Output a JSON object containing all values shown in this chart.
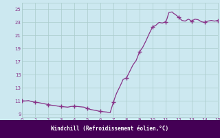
{
  "xlabel": "Windchill (Refroidissement éolien,°C)",
  "bg_color": "#cce8f0",
  "grid_color": "#aacccc",
  "line_color": "#883388",
  "marker_color": "#883388",
  "xlabel_bg": "#440055",
  "xlabel_fg": "#ffffff",
  "xlim": [
    0,
    15
  ],
  "ylim": [
    8.5,
    26
  ],
  "yticks": [
    9,
    11,
    13,
    15,
    17,
    19,
    21,
    23,
    25
  ],
  "xticks": [
    0,
    1,
    2,
    3,
    4,
    5,
    6,
    7,
    8,
    9,
    10,
    11,
    12,
    13,
    14,
    15
  ],
  "x": [
    0.0,
    0.25,
    0.5,
    0.75,
    1.0,
    1.25,
    1.5,
    1.75,
    2.0,
    2.25,
    2.5,
    2.75,
    3.0,
    3.25,
    3.5,
    3.75,
    4.0,
    4.25,
    4.5,
    4.75,
    5.0,
    5.25,
    5.5,
    5.75,
    6.0,
    6.25,
    6.5,
    6.75,
    7.0,
    7.1,
    7.25,
    7.5,
    7.75,
    8.0,
    8.25,
    8.5,
    8.75,
    9.0,
    9.25,
    9.5,
    9.75,
    10.0,
    10.25,
    10.5,
    10.75,
    11.0,
    11.1,
    11.25,
    11.5,
    11.6,
    11.75,
    12.0,
    12.25,
    12.5,
    12.75,
    13.0,
    13.25,
    13.5,
    13.75,
    14.0,
    14.25,
    14.5,
    14.75,
    15.0
  ],
  "y": [
    11.0,
    11.0,
    11.05,
    10.9,
    10.8,
    10.75,
    10.65,
    10.55,
    10.45,
    10.35,
    10.3,
    10.2,
    10.15,
    10.1,
    10.05,
    10.15,
    10.2,
    10.15,
    10.1,
    10.05,
    9.85,
    9.7,
    9.6,
    9.5,
    9.4,
    9.35,
    9.3,
    9.2,
    10.8,
    11.4,
    12.2,
    13.2,
    14.3,
    14.5,
    15.5,
    16.5,
    17.2,
    18.5,
    19.2,
    20.2,
    21.3,
    22.3,
    22.55,
    23.0,
    22.9,
    23.1,
    23.5,
    24.5,
    24.6,
    24.4,
    24.2,
    23.8,
    23.3,
    23.2,
    23.5,
    23.2,
    23.5,
    23.4,
    23.1,
    23.0,
    23.2,
    23.3,
    23.2,
    23.3
  ],
  "marker_x": [
    0.0,
    1.0,
    2.0,
    3.0,
    4.0,
    5.0,
    6.0,
    7.0,
    8.0,
    9.0,
    10.0,
    11.0,
    12.0,
    13.0,
    14.0,
    15.0
  ],
  "marker_y": [
    11.0,
    10.8,
    10.45,
    10.15,
    10.2,
    9.85,
    9.4,
    10.8,
    14.5,
    18.5,
    22.3,
    23.1,
    23.8,
    23.2,
    23.0,
    23.3
  ]
}
